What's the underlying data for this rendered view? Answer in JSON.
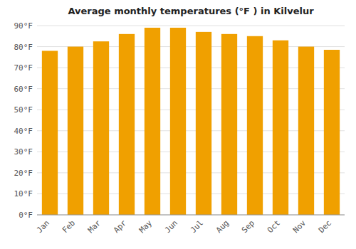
{
  "chart_data": {
    "type": "bar",
    "title": "Average monthly temperatures (°F ) in Kilvelur",
    "categories": [
      "Jan",
      "Feb",
      "Mar",
      "Apr",
      "May",
      "Jun",
      "Jul",
      "Aug",
      "Sep",
      "Oct",
      "Nov",
      "Dec"
    ],
    "values": [
      78,
      80,
      82.5,
      86,
      89,
      89,
      87,
      86,
      85,
      83,
      80,
      78.5
    ],
    "color": "#F0A000",
    "ylim": [
      0,
      90
    ],
    "yticks": [
      {
        "value": 0,
        "label": "0°F"
      },
      {
        "value": 10,
        "label": "10°F"
      },
      {
        "value": 20,
        "label": "20°F"
      },
      {
        "value": 30,
        "label": "30°F"
      },
      {
        "value": 40,
        "label": "40°F"
      },
      {
        "value": 50,
        "label": "50°F"
      },
      {
        "value": 60,
        "label": "60°F"
      },
      {
        "value": 70,
        "label": "70°F"
      },
      {
        "value": 80,
        "label": "80°F"
      },
      {
        "value": 90,
        "label": "90°F"
      }
    ],
    "grid": true
  }
}
